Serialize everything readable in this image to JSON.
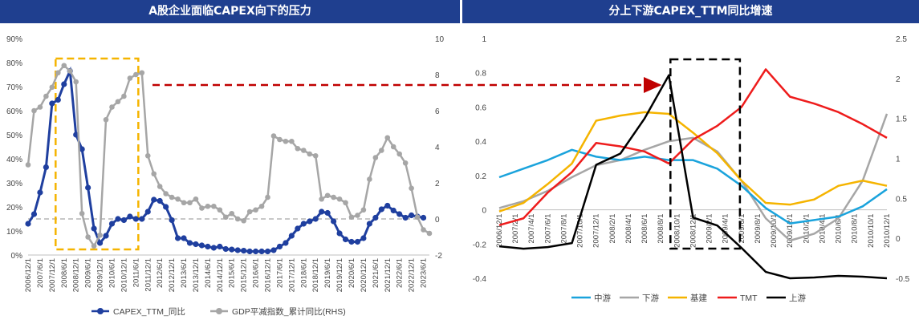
{
  "left_panel": {
    "title": "A股企业面临CAPEX向下的压力"
  },
  "right_panel": {
    "title": "分上下游CAPEX_TTM同比增速"
  },
  "colors": {
    "title_bg": "#1f3f8f",
    "navy": "#1f3f9f",
    "gray": "#a6a6a6",
    "annotation_dash": "#f5b400",
    "arrow": "#c00000",
    "box_black": "#000000"
  },
  "chart_data": [
    {
      "type": "line",
      "title": "A股企业面临CAPEX向下的压力",
      "x": [
        "2006/12/1",
        "2007/3/1",
        "2007/6/1",
        "2007/9/1",
        "2007/12/1",
        "2008/3/1",
        "2008/6/1",
        "2008/9/1",
        "2008/12/1",
        "2009/3/1",
        "2009/6/1",
        "2009/9/1",
        "2009/12/1",
        "2010/3/1",
        "2010/6/1",
        "2010/9/1",
        "2010/12/1",
        "2011/3/1",
        "2011/6/1",
        "2011/9/1",
        "2011/12/1",
        "2012/3/1",
        "2012/6/1",
        "2012/9/1",
        "2012/12/1",
        "2013/3/1",
        "2013/6/1",
        "2013/9/1",
        "2013/12/1",
        "2014/3/1",
        "2014/6/1",
        "2014/9/1",
        "2014/12/1",
        "2015/3/1",
        "2015/6/1",
        "2015/9/1",
        "2015/12/1",
        "2016/3/1",
        "2016/6/1",
        "2016/9/1",
        "2016/12/1",
        "2017/3/1",
        "2017/6/1",
        "2017/9/1",
        "2017/12/1",
        "2018/3/1",
        "2018/6/1",
        "2018/9/1",
        "2018/12/1",
        "2019/3/1",
        "2019/6/1",
        "2019/9/1",
        "2019/12/1",
        "2020/3/1",
        "2020/6/1",
        "2020/9/1",
        "2020/12/1",
        "2021/3/1",
        "2021/6/1",
        "2021/9/1",
        "2021/12/1",
        "2022/3/1",
        "2022/6/1",
        "2022/9/1",
        "2022/12/1",
        "2023/3/1",
        "2023/6/1",
        "2023/9/1"
      ],
      "x_tick_labels": [
        "2006/12/1",
        "2007/6/1",
        "2007/12/1",
        "2008/6/1",
        "2008/12/1",
        "2009/6/1",
        "2009/12/1",
        "2010/6/1",
        "2010/12/1",
        "2011/6/1",
        "2011/12/1",
        "2012/6/1",
        "2012/12/1",
        "2013/6/1",
        "2013/12/1",
        "2014/6/1",
        "2014/12/1",
        "2015/6/1",
        "2015/12/1",
        "2016/6/1",
        "2016/12/1",
        "2017/6/1",
        "2017/12/1",
        "2018/6/1",
        "2018/12/1",
        "2019/6/1",
        "2019/12/1",
        "2020/6/1",
        "2020/12/1",
        "2021/6/1",
        "2021/12/1",
        "2022/6/1",
        "2022/12/1",
        "2023/6/1"
      ],
      "series": [
        {
          "name": "CAPEX_TTM_同比",
          "axis": "left",
          "color": "#1f3f9f",
          "marker": "circle",
          "values": [
            13,
            17,
            26,
            36.5,
            63,
            64.5,
            71,
            76.5,
            50,
            44,
            28,
            11,
            5,
            8,
            13,
            15,
            14.5,
            16,
            15,
            15,
            18,
            23,
            22.5,
            20,
            14.5,
            7,
            7,
            5,
            4.5,
            4,
            3.5,
            3,
            3.5,
            2.5,
            2.3,
            2,
            1.8,
            1.5,
            1.5,
            1.5,
            1.5,
            2,
            3.5,
            5,
            8,
            11,
            13,
            14,
            15,
            18,
            17.5,
            14,
            9,
            6.5,
            5.5,
            5.5,
            7,
            13,
            15.5,
            19,
            20.5,
            18.5,
            17,
            15.5,
            16.5,
            16,
            15.5,
            null
          ]
        },
        {
          "name": "GDP平减指数_累计同比(RHS)",
          "axis": "right",
          "color": "#a6a6a6",
          "marker": "circle",
          "values": [
            3,
            6,
            6.2,
            6.8,
            7.3,
            8.1,
            8.5,
            8.2,
            7.6,
            0.3,
            -1,
            -1.5,
            -0.9,
            5.5,
            6.2,
            6.5,
            6.8,
            7.8,
            8,
            8.1,
            3.5,
            2.5,
            1.8,
            1.4,
            1.2,
            1.1,
            0.9,
            0.9,
            1.1,
            0.6,
            0.7,
            0.7,
            0.5,
            0.1,
            0.3,
            0,
            -0.1,
            0.4,
            0.5,
            0.7,
            1.2,
            4.6,
            4.4,
            4.3,
            4.3,
            3.9,
            3.8,
            3.6,
            3.5,
            1.1,
            1.3,
            1.2,
            1.1,
            0.9,
            0.1,
            0.2,
            0.5,
            2.2,
            3.4,
            3.8,
            4.5,
            4,
            3.6,
            3.1,
            1.7,
            0.1,
            -0.6,
            -0.8
          ]
        }
      ],
      "yleft": {
        "min": 0,
        "max": 90,
        "ticks": [
          "0%",
          "10%",
          "20%",
          "30%",
          "40%",
          "50%",
          "60%",
          "70%",
          "80%",
          "90%"
        ]
      },
      "yright": {
        "min": -2,
        "max": 10,
        "ticks": [
          "-2",
          "0",
          "2",
          "4",
          "6",
          "8",
          "10"
        ]
      },
      "reference_line": {
        "axis": "right",
        "value": 0,
        "style": "dashed"
      },
      "legend": {
        "placement": "bottom",
        "entries": [
          "CAPEX_TTM_同比",
          "GDP平减指数_累计同比(RHS)"
        ]
      },
      "annotation_box": {
        "x_from": "2008/3/1",
        "x_to": "2011/6/1",
        "style": "dashed",
        "color": "#f5b400"
      },
      "grid": false
    },
    {
      "type": "line",
      "title": "分上下游CAPEX_TTM同比增速",
      "x": [
        "2006/12/1",
        "2007/3/1",
        "2007/6/1",
        "2007/9/1",
        "2007/12/1",
        "2008/3/1",
        "2008/6/1",
        "2008/9/1",
        "2008/12/1",
        "2009/3/1",
        "2009/6/1",
        "2009/9/1",
        "2009/12/1",
        "2010/3/1",
        "2010/6/1",
        "2010/9/1",
        "2010/12/1"
      ],
      "x_tick_labels": [
        "2006/12/1",
        "2007/2/1",
        "2007/4/1",
        "2007/6/1",
        "2007/8/1",
        "2007/10/1",
        "2007/12/1",
        "2008/2/1",
        "2008/4/1",
        "2008/6/1",
        "2008/8/1",
        "2008/10/1",
        "2008/12/1",
        "2009/2/1",
        "2009/4/1",
        "2009/6/1",
        "2009/8/1",
        "2009/10/1",
        "2009/12/1",
        "2010/2/1",
        "2010/4/1",
        "2010/6/1",
        "2010/8/1",
        "2010/10/1",
        "2010/12/1"
      ],
      "series": [
        {
          "name": "中游",
          "axis": "left",
          "color": "#1aa3dc",
          "values": [
            0.19,
            0.24,
            0.29,
            0.35,
            0.31,
            0.29,
            0.31,
            0.29,
            0.29,
            0.24,
            0.14,
            0.01,
            -0.08,
            -0.06,
            -0.04,
            0.02,
            0.12
          ]
        },
        {
          "name": "下游",
          "axis": "left",
          "color": "#a6a6a6",
          "values": [
            0.01,
            0.05,
            0.11,
            0.19,
            0.26,
            0.29,
            0.35,
            0.4,
            0.42,
            0.34,
            0.17,
            -0.05,
            -0.18,
            -0.14,
            -0.05,
            0.17,
            0.56
          ]
        },
        {
          "name": "基建",
          "axis": "left",
          "color": "#f5b400",
          "values": [
            -0.01,
            0.04,
            0.15,
            0.27,
            0.52,
            0.55,
            0.57,
            0.56,
            0.45,
            0.33,
            0.17,
            0.04,
            0.03,
            0.06,
            0.14,
            0.17,
            0.14
          ]
        },
        {
          "name": "TMT",
          "axis": "left",
          "color": "#ee1c1c",
          "values": [
            -0.09,
            -0.05,
            0.1,
            0.22,
            0.39,
            0.37,
            0.34,
            0.27,
            0.41,
            0.49,
            0.6,
            0.82,
            0.66,
            0.62,
            0.57,
            0.5,
            0.42
          ]
        },
        {
          "name": "上游",
          "axis": "right",
          "color": "#000000",
          "values": [
            -0.1,
            -0.13,
            -0.11,
            -0.06,
            0.92,
            1.06,
            1.5,
            2.04,
            0.26,
            0.16,
            -0.12,
            -0.42,
            -0.5,
            -0.49,
            -0.47,
            -0.48,
            -0.5
          ]
        }
      ],
      "yleft": {
        "min": -0.4,
        "max": 1.0,
        "ticks": [
          "-0.4",
          "-0.2",
          "0",
          "0.2",
          "0.4",
          "0.6",
          "0.8",
          "1"
        ]
      },
      "yright": {
        "min": -0.5,
        "max": 2.5,
        "ticks": [
          "-0.5",
          "0",
          "0.5",
          "1",
          "1.5",
          "2",
          "2.5"
        ]
      },
      "legend": {
        "placement": "bottom",
        "entries": [
          "中游",
          "下游",
          "基建",
          "TMT",
          "上游"
        ]
      },
      "annotation_box": {
        "x_from": "2008/9/1",
        "x_to": "2009/6/1",
        "style": "dashed",
        "color": "#000000"
      },
      "grid": false
    }
  ]
}
